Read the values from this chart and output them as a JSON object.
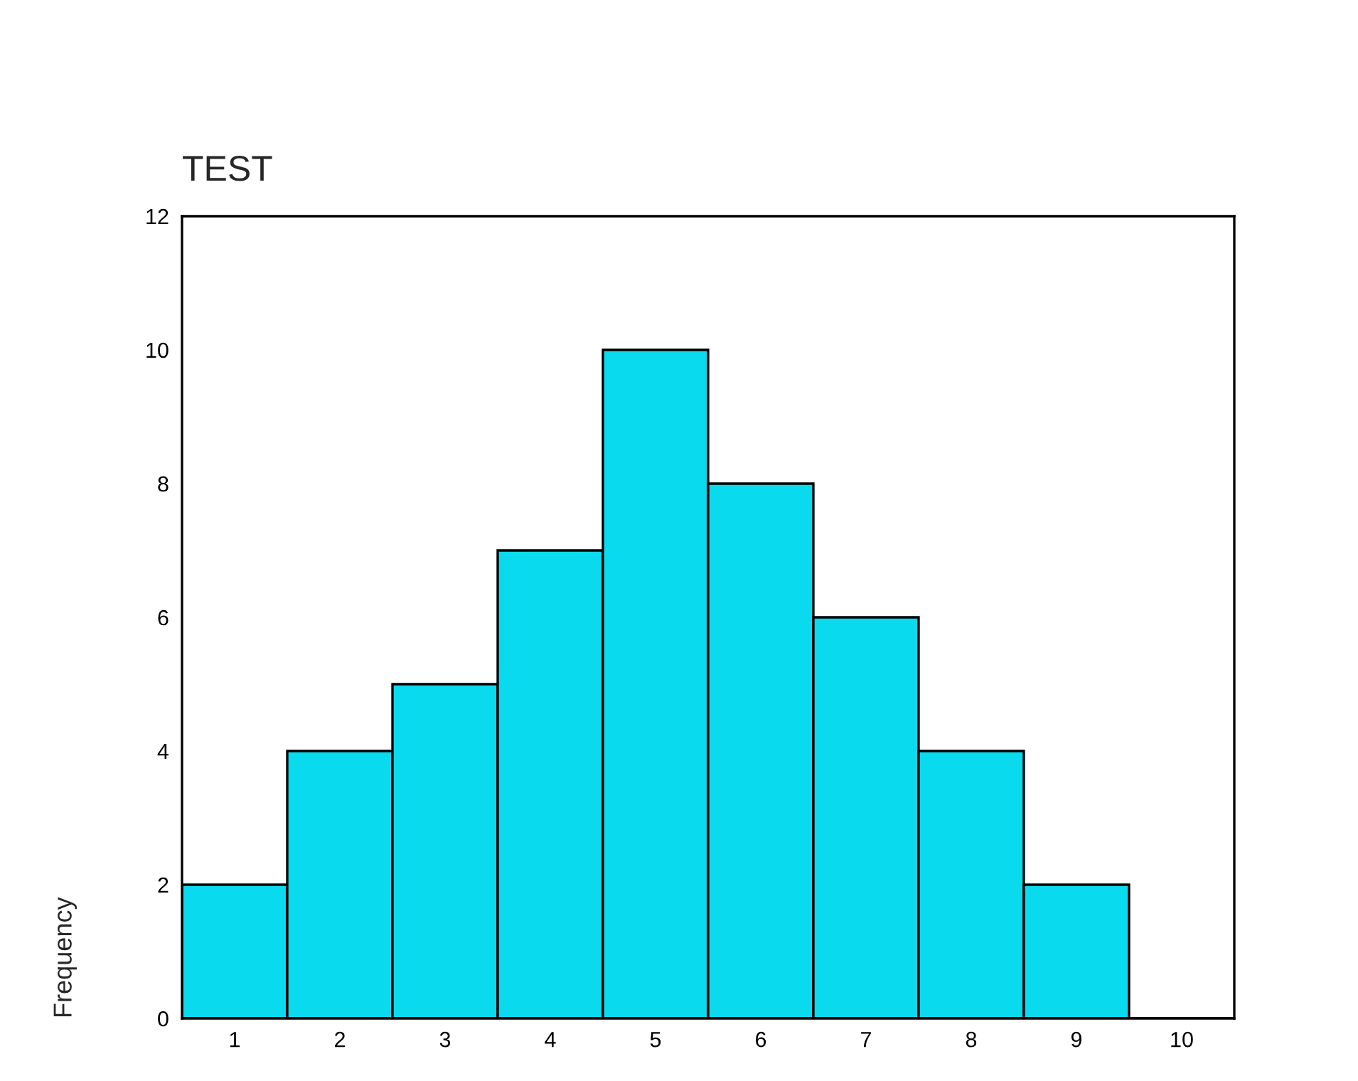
{
  "chart_data": {
    "type": "bar",
    "title": "TEST",
    "ylabel": "Frequency",
    "categories": [
      "1",
      "2",
      "3",
      "4",
      "5",
      "6",
      "7",
      "8",
      "9",
      "10"
    ],
    "values": [
      2,
      4,
      5,
      7,
      10,
      8,
      6,
      4,
      2,
      0
    ],
    "color": "#0adaee",
    "ylim": [
      0,
      12
    ],
    "yticks": [
      0,
      2,
      4,
      6,
      8,
      10,
      12
    ],
    "grid": false
  }
}
